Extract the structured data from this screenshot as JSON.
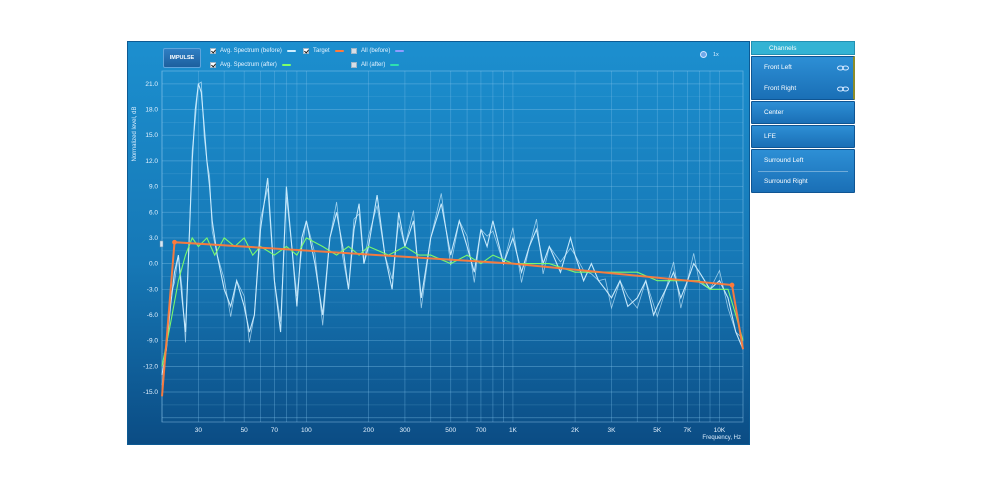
{
  "impulse_label": "IMPULSE",
  "zoom_label": "1x",
  "legend": [
    {
      "label": "Avg. Spectrum (before)",
      "checked": true,
      "color": "#cfeeff"
    },
    {
      "label": "Target",
      "checked": true,
      "color": "#ff7a3a"
    },
    {
      "label": "All (before)",
      "checked": false,
      "color": "#8f9cff"
    },
    {
      "label": "Avg. Spectrum (after)",
      "checked": true,
      "color": "#7dff6a"
    },
    {
      "label": "All (after)",
      "checked": false,
      "color": "#2ee0b0"
    }
  ],
  "channels": {
    "header": "Channels",
    "groups": [
      [
        "Front Left",
        "Front Right"
      ],
      [
        "Center"
      ],
      [
        "LFE"
      ],
      [
        "Surround Left",
        "Surround Right"
      ]
    ]
  },
  "colors": {
    "before": "#cfeeff",
    "after": "#7dff6a",
    "target": "#ff7a3a",
    "grid": "#7fc2ea"
  },
  "chart_data": {
    "type": "line",
    "xlabel": "Frequency, Hz",
    "ylabel": "Normalized level, dB",
    "x_scale": "log",
    "xlim": [
      20,
      13000
    ],
    "ylim": [
      -18.5,
      22.5
    ],
    "grid": true,
    "x_tick_labels": [
      {
        "v": 30,
        "label": "30"
      },
      {
        "v": 50,
        "label": "50"
      },
      {
        "v": 70,
        "label": "70"
      },
      {
        "v": 100,
        "label": "100"
      },
      {
        "v": 200,
        "label": "200"
      },
      {
        "v": 300,
        "label": "300"
      },
      {
        "v": 500,
        "label": "500"
      },
      {
        "v": 700,
        "label": "700"
      },
      {
        "v": 1000,
        "label": "1K"
      },
      {
        "v": 2000,
        "label": "2K"
      },
      {
        "v": 3000,
        "label": "3K"
      },
      {
        "v": 5000,
        "label": "5K"
      },
      {
        "v": 7000,
        "label": "7K"
      },
      {
        "v": 10000,
        "label": "10K"
      }
    ],
    "y_ticks": [
      21,
      18,
      15,
      12,
      9,
      6,
      3,
      0,
      -3,
      -6,
      -9,
      -12,
      -15
    ],
    "series": [
      {
        "name": "Avg. Spectrum (before)",
        "x": [
          20,
          21,
          22,
          23,
          24,
          25,
          26,
          27,
          28,
          29,
          30,
          31,
          32,
          33,
          34,
          35,
          37,
          40,
          43,
          46,
          50,
          53,
          56,
          60,
          65,
          70,
          75,
          80,
          85,
          90,
          95,
          100,
          110,
          120,
          130,
          140,
          150,
          160,
          170,
          180,
          190,
          200,
          220,
          240,
          260,
          280,
          300,
          330,
          360,
          400,
          450,
          500,
          550,
          600,
          650,
          700,
          750,
          800,
          900,
          1000,
          1100,
          1200,
          1300,
          1400,
          1500,
          1700,
          1900,
          2000,
          2200,
          2400,
          2600,
          2800,
          3000,
          3300,
          3600,
          4000,
          4400,
          4800,
          5000,
          5500,
          6000,
          6500,
          7000,
          7500,
          8000,
          9000,
          10000,
          11000,
          12000,
          13000
        ],
        "y": [
          -13,
          -10,
          -5,
          -1,
          1,
          -4,
          -8,
          2,
          12,
          18,
          21,
          20,
          16,
          12,
          9,
          5,
          1,
          -3,
          -5,
          -2,
          -5,
          -8,
          -6,
          4,
          10,
          -2,
          -8,
          9,
          2,
          -5,
          3,
          5,
          0,
          -6,
          3,
          6,
          2,
          -3,
          4,
          7,
          0,
          2,
          8,
          1,
          -3,
          6,
          2,
          5,
          -4,
          3,
          7,
          1,
          5,
          2,
          -1,
          4,
          2,
          5,
          0,
          3,
          -1,
          2,
          4,
          0,
          2,
          -1,
          3,
          1,
          -2,
          0,
          -2,
          -3,
          -4,
          -2,
          -5,
          -4,
          -2,
          -6,
          -5,
          -3,
          -1,
          -4,
          -2,
          0,
          -1,
          -3,
          -2,
          -4,
          -8,
          -10
        ]
      },
      {
        "name": "Avg. Spectrum (after)",
        "x": [
          20,
          22,
          24,
          26,
          28,
          30,
          33,
          36,
          40,
          45,
          50,
          55,
          60,
          70,
          80,
          90,
          100,
          120,
          140,
          160,
          180,
          200,
          250,
          300,
          350,
          400,
          500,
          600,
          700,
          800,
          1000,
          1200,
          1500,
          2000,
          2500,
          3000,
          4000,
          5000,
          6000,
          7000,
          8000,
          9000,
          10000,
          11000,
          12000,
          13000
        ],
        "y": [
          -12,
          -7,
          -2,
          1,
          3,
          2,
          3,
          1,
          3,
          2,
          3,
          1,
          2,
          1,
          2,
          1,
          3,
          2,
          1,
          2,
          1,
          2,
          1,
          2,
          1,
          1,
          0,
          1,
          0,
          1,
          0,
          0,
          0,
          -1,
          -1,
          -1,
          -1,
          -2,
          -2,
          -2,
          -2,
          -3,
          -3,
          -3,
          -6,
          -9
        ]
      },
      {
        "name": "Target",
        "x": [
          20,
          23,
          1000,
          11500,
          13000
        ],
        "y": [
          -15.5,
          2.5,
          0,
          -2.5,
          -10
        ]
      }
    ]
  }
}
